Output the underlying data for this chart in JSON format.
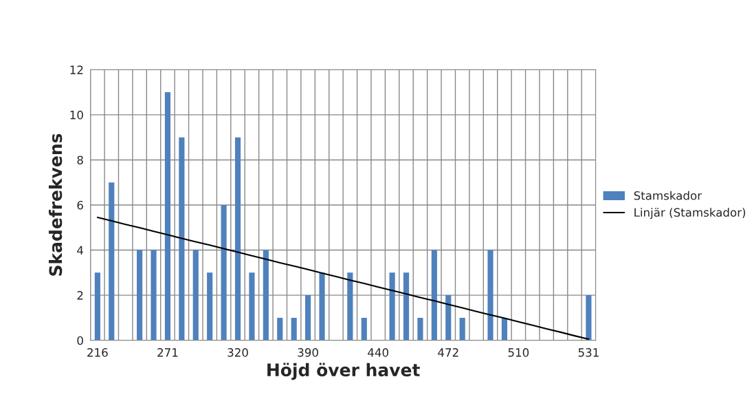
{
  "chart_data": {
    "type": "bar",
    "xlabel": "Höjd över havet",
    "ylabel": "Skadefrekvens",
    "categories": [
      "216",
      null,
      null,
      null,
      null,
      "271",
      null,
      null,
      null,
      null,
      "320",
      null,
      null,
      null,
      null,
      "390",
      null,
      null,
      null,
      null,
      "440",
      null,
      null,
      null,
      null,
      "472",
      null,
      null,
      null,
      null,
      "510",
      null,
      null,
      null,
      null,
      "531"
    ],
    "series": [
      {
        "name": "Stamskador",
        "color": "#4f81bd",
        "values": [
          3,
          7,
          0,
          4,
          4,
          11,
          9,
          4,
          3,
          6,
          9,
          3,
          4,
          1,
          1,
          2,
          3,
          0,
          3,
          1,
          0,
          3,
          3,
          1,
          4,
          2,
          1,
          0,
          4,
          1,
          0,
          0,
          0,
          0,
          0,
          2
        ]
      },
      {
        "name": "Linjär (Stamskador)",
        "type": "line",
        "color": "#000000",
        "values": [
          5.45,
          5.3,
          5.14,
          4.99,
          4.83,
          4.68,
          4.52,
          4.37,
          4.22,
          4.06,
          3.91,
          3.75,
          3.6,
          3.44,
          3.29,
          3.14,
          2.98,
          2.83,
          2.67,
          2.52,
          2.36,
          2.21,
          2.06,
          1.9,
          1.75,
          1.59,
          1.44,
          1.28,
          1.13,
          0.98,
          0.82,
          0.67,
          0.51,
          0.36,
          0.2,
          0.05
        ]
      }
    ],
    "ylim": [
      0,
      12
    ],
    "yticks": [
      0,
      2,
      4,
      6,
      8,
      10,
      12
    ],
    "grid": true,
    "legend": "right",
    "marker": "none",
    "line_style": "solid"
  }
}
